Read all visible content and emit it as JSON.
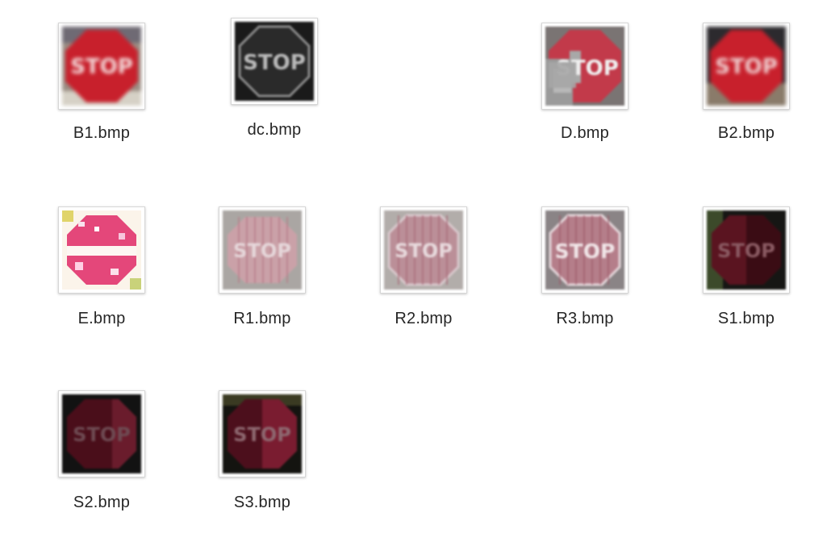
{
  "files": [
    {
      "name": "B1.bmp",
      "icon": "stop-sign-thumbnail-icon",
      "style": "blurred-red"
    },
    {
      "name": "dc.bmp",
      "icon": "stop-sign-thumbnail-icon",
      "style": "dark-grayscale"
    },
    {
      "name": "D.bmp",
      "icon": "stop-sign-thumbnail-icon",
      "style": "pixel-damaged"
    },
    {
      "name": "B2.bmp",
      "icon": "stop-sign-thumbnail-icon",
      "style": "blurred-red"
    },
    {
      "name": "E.bmp",
      "icon": "stop-sign-thumbnail-icon",
      "style": "overexposed-noise"
    },
    {
      "name": "R1.bmp",
      "icon": "stop-sign-thumbnail-icon",
      "style": "faded-stripes"
    },
    {
      "name": "R2.bmp",
      "icon": "stop-sign-thumbnail-icon",
      "style": "faded-stripes"
    },
    {
      "name": "R3.bmp",
      "icon": "stop-sign-thumbnail-icon",
      "style": "faded-stripes-clear"
    },
    {
      "name": "S1.bmp",
      "icon": "stop-sign-thumbnail-icon",
      "style": "dark-shadowed"
    },
    {
      "name": "S2.bmp",
      "icon": "stop-sign-thumbnail-icon",
      "style": "dark-shadowed"
    },
    {
      "name": "S3.bmp",
      "icon": "stop-sign-thumbnail-icon",
      "style": "dark-shadowed"
    }
  ],
  "colors": {
    "stop_red": "#c8202c",
    "label_text": "#262626",
    "thumb_border": "#d7d7d7"
  }
}
